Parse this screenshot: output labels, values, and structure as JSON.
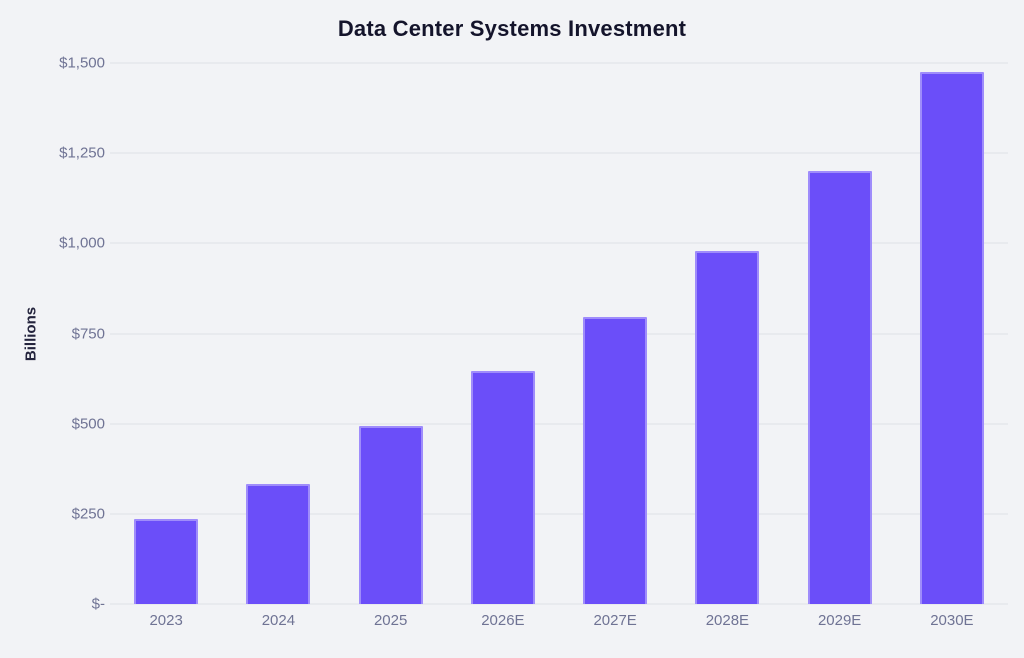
{
  "title": "Data Center Systems Investment",
  "colors": {
    "background": "#F2F3F6",
    "bar": "#6B4EF9",
    "bar_edge": "rgba(255,255,255,0.35)",
    "gridline": "#DEE0E6",
    "axis_text": "#6F7394",
    "title_text": "#14142B"
  },
  "chart_data": {
    "type": "bar",
    "title": "Data Center Systems Investment",
    "xlabel": "",
    "ylabel": "Billions",
    "categories": [
      "2023",
      "2024",
      "2025",
      "2026E",
      "2027E",
      "2028E",
      "2029E",
      "2030E"
    ],
    "values": [
      237,
      333,
      494,
      647,
      797,
      980,
      1200,
      1475
    ],
    "ylim": [
      0,
      1500
    ],
    "ytick_values": [
      0,
      250,
      500,
      750,
      1000,
      1250,
      1500
    ],
    "ytick_labels": [
      "$-",
      "$250",
      "$500",
      "$750",
      "$1,000",
      "$1,250",
      "$1,500"
    ],
    "grid": true,
    "legend": false,
    "bar_color": "#6B4EF9"
  }
}
